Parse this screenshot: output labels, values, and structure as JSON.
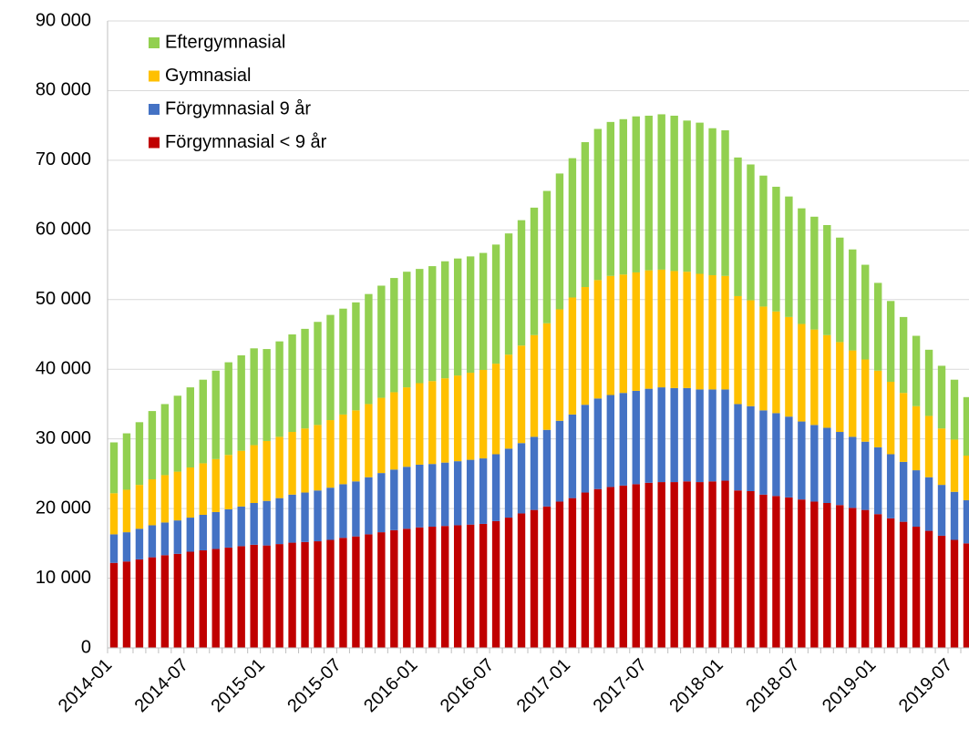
{
  "chart_data": {
    "type": "stacked_bar",
    "categories": [
      "2014-01",
      null,
      null,
      null,
      null,
      null,
      "2014-07",
      null,
      null,
      null,
      null,
      null,
      "2015-01",
      null,
      null,
      null,
      null,
      null,
      "2015-07",
      null,
      null,
      null,
      null,
      null,
      "2016-01",
      null,
      null,
      null,
      null,
      null,
      "2016-07",
      null,
      null,
      null,
      null,
      null,
      "2017-01",
      null,
      null,
      null,
      null,
      null,
      "2017-07",
      null,
      null,
      null,
      null,
      null,
      "2018-01",
      null,
      null,
      null,
      null,
      null,
      "2018-07",
      null,
      null,
      null,
      null,
      null,
      "2019-01",
      null,
      null,
      null,
      null,
      null,
      "2019-07",
      null
    ],
    "series": [
      {
        "name": "Förgymnasial < 9 år",
        "color": "#c00000",
        "values": [
          12200,
          12400,
          12700,
          13000,
          13300,
          13500,
          13800,
          14000,
          14200,
          14400,
          14600,
          14800,
          14700,
          14900,
          15100,
          15200,
          15300,
          15500,
          15800,
          16000,
          16300,
          16600,
          16900,
          17100,
          17300,
          17400,
          17500,
          17600,
          17700,
          17800,
          18200,
          18700,
          19300,
          19800,
          20300,
          21000,
          21500,
          22300,
          22800,
          23100,
          23300,
          23500,
          23700,
          23800,
          23800,
          23900,
          23800,
          23900,
          24000,
          22600,
          22500,
          22000,
          21800,
          21600,
          21300,
          21000,
          20800,
          20500,
          20100,
          19800,
          19200,
          18600,
          18100,
          17400,
          16800,
          16100,
          15500,
          15000
        ]
      },
      {
        "name": "Förgymnasial 9 år",
        "color": "#4472c4",
        "values": [
          4100,
          4200,
          4400,
          4600,
          4700,
          4800,
          4900,
          5100,
          5300,
          5500,
          5700,
          6000,
          6400,
          6600,
          6900,
          7100,
          7300,
          7500,
          7700,
          7900,
          8200,
          8500,
          8700,
          8900,
          9000,
          9000,
          9100,
          9200,
          9300,
          9400,
          9600,
          9900,
          10100,
          10500,
          11000,
          11600,
          12000,
          12600,
          13000,
          13200,
          13300,
          13400,
          13500,
          13600,
          13500,
          13400,
          13300,
          13200,
          13100,
          12400,
          12200,
          12100,
          11900,
          11600,
          11200,
          11000,
          10800,
          10500,
          10200,
          9800,
          9600,
          9200,
          8600,
          8100,
          7700,
          7300,
          6900,
          6200
        ]
      },
      {
        "name": "Gymnasial",
        "color": "#ffc000",
        "values": [
          5900,
          6100,
          6300,
          6600,
          6800,
          7000,
          7200,
          7400,
          7600,
          7800,
          8000,
          8300,
          8600,
          8800,
          9000,
          9200,
          9400,
          9700,
          10000,
          10200,
          10500,
          10800,
          11100,
          11400,
          11700,
          11900,
          12100,
          12300,
          12500,
          12700,
          13000,
          13500,
          14000,
          14600,
          15300,
          16000,
          16800,
          16900,
          17000,
          17100,
          17000,
          17000,
          17000,
          16900,
          16800,
          16700,
          16600,
          16400,
          16300,
          15500,
          15200,
          14900,
          14600,
          14300,
          14000,
          13700,
          13300,
          12900,
          12400,
          11800,
          11000,
          10400,
          9900,
          9200,
          8800,
          8100,
          7500,
          6400
        ]
      },
      {
        "name": "Eftergymnasial",
        "color": "#92d050",
        "values": [
          7300,
          8100,
          9000,
          9800,
          10200,
          10900,
          11500,
          12000,
          12700,
          13300,
          13700,
          13900,
          13200,
          13700,
          14000,
          14300,
          14800,
          15100,
          15200,
          15500,
          15800,
          16100,
          16400,
          16600,
          16400,
          16500,
          16800,
          16800,
          16700,
          16800,
          17100,
          17400,
          18000,
          18300,
          19000,
          19500,
          20000,
          20800,
          21700,
          22100,
          22300,
          22400,
          22200,
          22300,
          22300,
          21700,
          21700,
          21100,
          20900,
          19900,
          19500,
          18800,
          17900,
          17300,
          16600,
          16200,
          15800,
          15000,
          14500,
          13600,
          12600,
          11600,
          10900,
          10100,
          9500,
          9000,
          8600,
          8400
        ]
      }
    ],
    "ylim": [
      0,
      90000
    ],
    "yticks": [
      0,
      {
        "value": 10000,
        "label": "10 000"
      },
      {
        "value": 20000,
        "label": "20 000"
      },
      {
        "value": 30000,
        "label": "30 000"
      },
      {
        "value": 40000,
        "label": "40 000"
      },
      {
        "value": 50000,
        "label": "50 000"
      },
      {
        "value": 60000,
        "label": "60 000"
      },
      {
        "value": 70000,
        "label": "70 000"
      },
      {
        "value": 80000,
        "label": "80 000"
      },
      {
        "value": 90000,
        "label": "90 000"
      }
    ],
    "grid": true,
    "legend": "upper left"
  }
}
